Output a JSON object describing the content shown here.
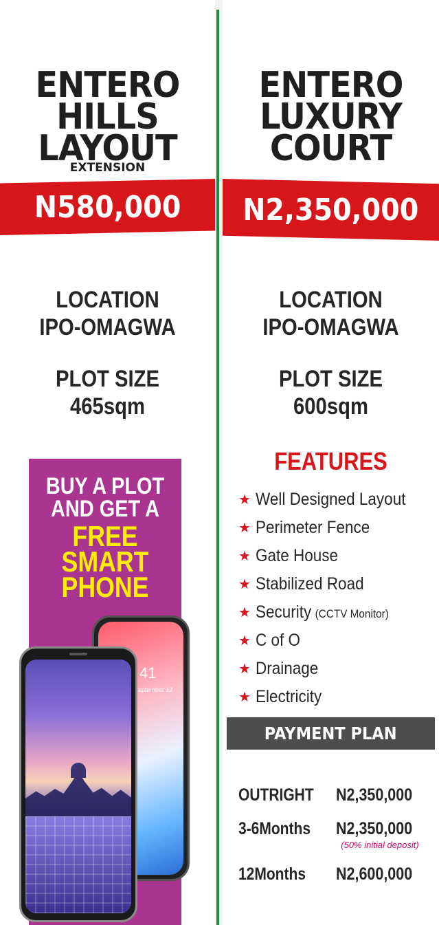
{
  "left": {
    "title_lines": [
      "ENTERO",
      "HILLS",
      "LAYOUT"
    ],
    "subtitle": "EXTENSION",
    "price": "N580,000",
    "location_label": "LOCATION",
    "location_value": "IPO-OMAGWA",
    "plot_size_label": "PLOT SIZE",
    "plot_size_value": "465sqm",
    "promo": {
      "line1": "BUY A PLOT",
      "line2": "AND GET A",
      "line3": "FREE",
      "line4": "SMART",
      "line5": "PHONE",
      "phone_time": "41",
      "phone_date": "eptember 12"
    }
  },
  "right": {
    "title_lines": [
      "ENTERO",
      "LUXURY",
      "COURT"
    ],
    "price": "N2,350,000",
    "location_label": "LOCATION",
    "location_value": "IPO-OMAGWA",
    "plot_size_label": "PLOT SIZE",
    "plot_size_value": "600sqm",
    "features_title": "FEATURES",
    "features": [
      {
        "label": "Well Designed Layout",
        "note": ""
      },
      {
        "label": "Perimeter Fence",
        "note": ""
      },
      {
        "label": "Gate House",
        "note": ""
      },
      {
        "label": "Stabilized Road",
        "note": ""
      },
      {
        "label": "Security",
        "note": "(CCTV Monitor)"
      },
      {
        "label": "C of O",
        "note": ""
      },
      {
        "label": "Drainage",
        "note": ""
      },
      {
        "label": "Electricity",
        "note": ""
      }
    ],
    "payment_title": "PAYMENT PLAN",
    "payment_plan": [
      {
        "label": "OUTRIGHT",
        "value": "N2,350,000",
        "note": ""
      },
      {
        "label": "3-6Months",
        "value": "N2,350,000",
        "note": "(50% initial deposit)"
      },
      {
        "label": "12Months",
        "value": "N2,600,000",
        "note": ""
      }
    ]
  },
  "colors": {
    "accent_red": "#d7161c",
    "divider_green": "#1e8a3c",
    "promo_purple": "#a93591",
    "promo_yellow": "#ffee00",
    "payment_bar": "#4d4d4f"
  },
  "icons": {
    "feature_bullet": "star-icon"
  }
}
